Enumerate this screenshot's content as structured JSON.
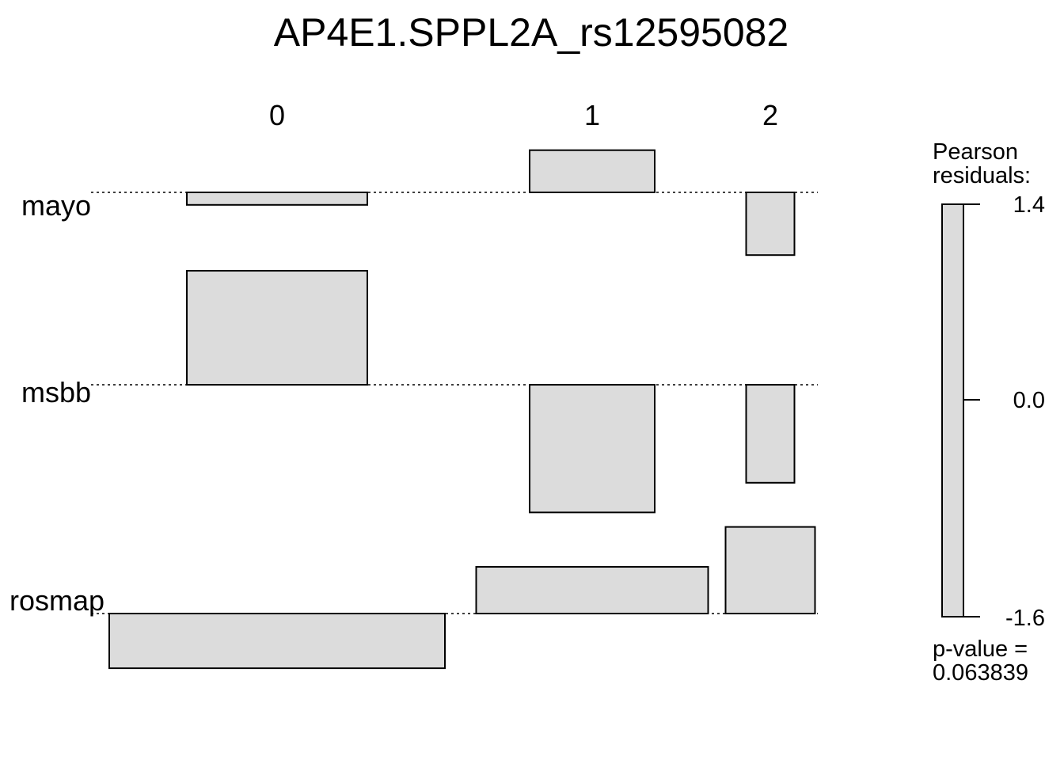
{
  "chart_data": {
    "type": "assoc",
    "title": "AP4E1.SPPL2A_rs12595082",
    "columns": [
      "0",
      "1",
      "2"
    ],
    "rows": [
      "mayo",
      "msbb",
      "rosmap"
    ],
    "residuals": [
      [
        -0.11,
        0.37,
        -0.55
      ],
      [
        1.0,
        -1.12,
        -0.86
      ],
      [
        -0.48,
        0.41,
        0.76
      ]
    ],
    "legend": {
      "title_line1": "Pearson",
      "title_line2": "residuals:",
      "ticks": [
        "1.4",
        "0.0",
        "-1.6"
      ],
      "range": [
        -1.6,
        1.4
      ]
    },
    "pvalue_line1": "p-value =",
    "pvalue_line2": "0.063839",
    "colors": {
      "box_fill": "#dcdcdc",
      "box_stroke": "#000000",
      "baseline": "#000000"
    }
  }
}
